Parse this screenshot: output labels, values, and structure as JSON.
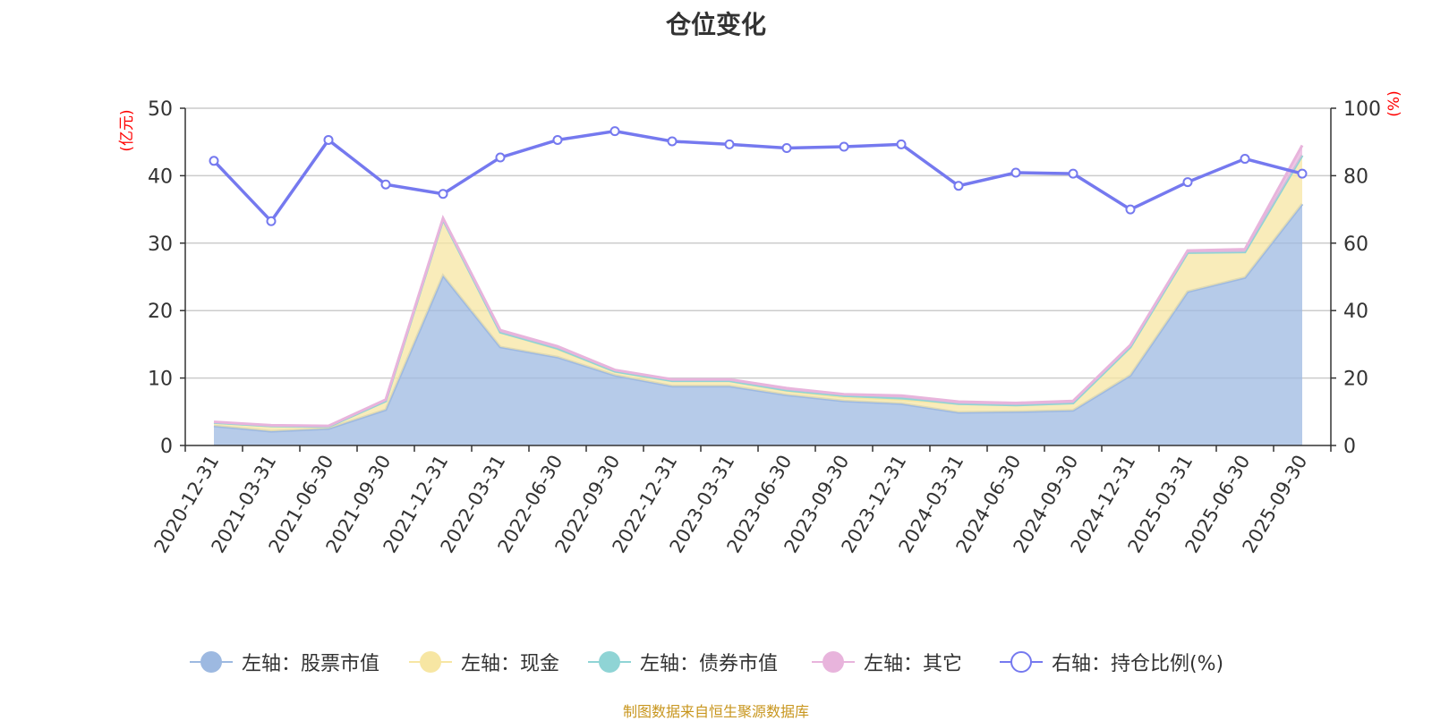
{
  "chart_data": {
    "type": "area",
    "title": "仓位变化",
    "left_axis_label": "(亿元)",
    "right_axis_label": "(%)",
    "left_ylim": [
      0,
      50
    ],
    "left_ticks": [
      0,
      10,
      20,
      30,
      40,
      50
    ],
    "right_ylim": [
      0,
      100
    ],
    "right_ticks": [
      0,
      20,
      40,
      60,
      80,
      100
    ],
    "grid": true,
    "legend_position": "bottom",
    "categories": [
      "2020-12-31",
      "2021-03-31",
      "2021-06-30",
      "2021-09-30",
      "2021-12-31",
      "2022-03-31",
      "2022-06-30",
      "2022-09-30",
      "2022-12-31",
      "2023-03-31",
      "2023-06-30",
      "2023-09-30",
      "2023-12-31",
      "2024-03-31",
      "2024-06-30",
      "2024-09-30",
      "2024-12-31",
      "2025-03-31",
      "2025-06-30",
      "2025-09-30"
    ],
    "series": [
      {
        "name": "左轴：股票市值",
        "axis": "left",
        "kind": "stacked-area",
        "color": "#9db9e1",
        "values": [
          2.9,
          2.1,
          2.5,
          5.3,
          25.2,
          14.6,
          13.1,
          10.4,
          8.8,
          8.8,
          7.5,
          6.6,
          6.2,
          4.9,
          5.0,
          5.2,
          10.4,
          22.8,
          24.9,
          35.8
        ]
      },
      {
        "name": "左轴：现金",
        "axis": "left",
        "kind": "stacked-area",
        "color": "#f7e6a3",
        "values": [
          0.5,
          0.8,
          0.3,
          1.3,
          8.3,
          2.2,
          1.2,
          0.6,
          0.8,
          0.8,
          0.6,
          0.6,
          0.6,
          1.3,
          1.0,
          1.1,
          4.2,
          5.8,
          3.8,
          7.2
        ]
      },
      {
        "name": "左轴：债券市值",
        "axis": "left",
        "kind": "stacked-area",
        "color": "#8fd4d5",
        "values": [
          0,
          0,
          0,
          0,
          0,
          0,
          0.1,
          0,
          0,
          0,
          0.1,
          0.2,
          0.3,
          0,
          0,
          0,
          0,
          0,
          0,
          0
        ]
      },
      {
        "name": "左轴：其它",
        "axis": "left",
        "kind": "stacked-area",
        "color": "#e8b4dc",
        "values": [
          0.1,
          0.1,
          0.1,
          0.2,
          0.2,
          0.3,
          0.3,
          0.2,
          0.2,
          0.2,
          0.3,
          0.2,
          0.3,
          0.3,
          0.3,
          0.3,
          0.3,
          0.3,
          0.4,
          1.5
        ]
      },
      {
        "name": "右轴：持仓比例(%)",
        "axis": "right",
        "kind": "line",
        "color": "#7579ef",
        "values": [
          84.4,
          66.5,
          90.6,
          77.4,
          74.6,
          85.4,
          90.6,
          93.2,
          90.2,
          89.3,
          88.2,
          88.6,
          89.3,
          77.0,
          80.9,
          80.6,
          70.0,
          78.1,
          85.0,
          80.6
        ]
      }
    ],
    "source_note": "制图数据来自恒生聚源数据库"
  }
}
